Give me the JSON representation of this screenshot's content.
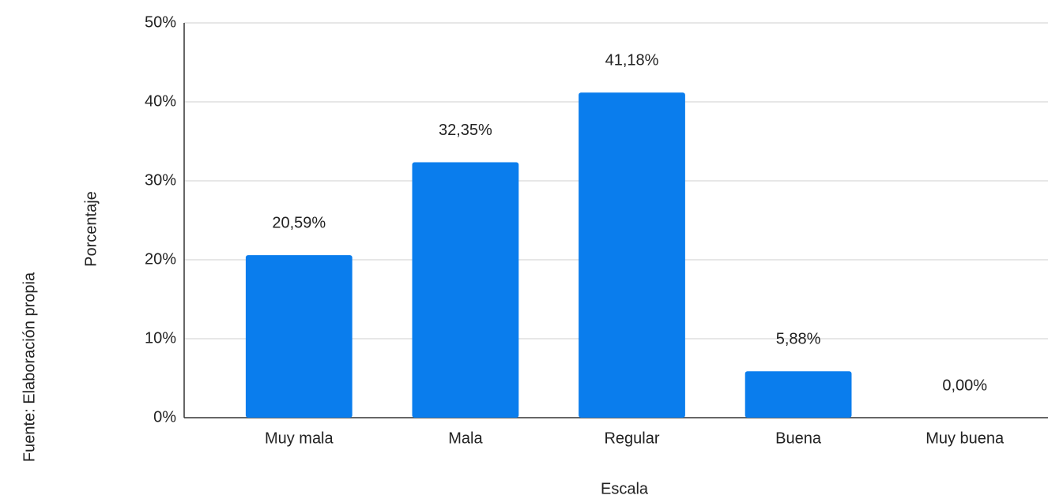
{
  "chart_data": {
    "type": "bar",
    "source": "Fuente: Elaboración propia",
    "ylabel": "Porcentaje",
    "xlabel": "Escala",
    "categories": [
      "Muy mala",
      "Mala",
      "Regular",
      "Buena",
      "Muy buena"
    ],
    "values": [
      20.59,
      32.35,
      41.18,
      5.88,
      0
    ],
    "value_labels": [
      "20,59%",
      "32,35%",
      "41,18%",
      "5,88%",
      "0,00%"
    ],
    "color": "#0a7ded",
    "ylim": [
      0,
      50
    ],
    "yticks": [
      {
        "value": 0,
        "label": "0%"
      },
      {
        "value": 10,
        "label": "10%"
      },
      {
        "value": 20,
        "label": "20%"
      },
      {
        "value": 30,
        "label": "30%"
      },
      {
        "value": 40,
        "label": "40%"
      },
      {
        "value": 50,
        "label": "50%"
      }
    ],
    "grid": true
  }
}
